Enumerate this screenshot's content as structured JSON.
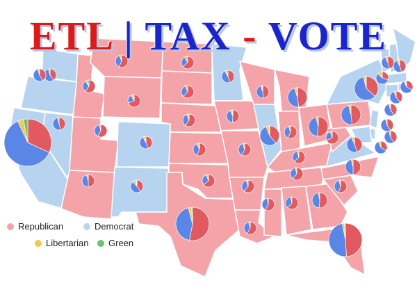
{
  "title": {
    "part1": "ETL",
    "separator": " | ",
    "part2": "TAX",
    "dash": " - ",
    "part3": "VOTE"
  },
  "colors": {
    "republican": "#f4a3a8",
    "democrat": "#b6d3ef",
    "republican_pie": "#e05a60",
    "democrat_pie": "#5b86e6",
    "libertarian_pie": "#f2c94c",
    "green_pie": "#6cc26c",
    "border": "#ffffff"
  },
  "legend": [
    {
      "label": "Republican",
      "color": "#f2a3a8"
    },
    {
      "label": "Democrat",
      "color": "#b9d5f0"
    },
    {
      "label": "Libertarian",
      "color": "#f2c94c"
    },
    {
      "label": "Green",
      "color": "#6cc26c"
    }
  ],
  "states": [
    {
      "name": "WA",
      "party": "Democrat"
    },
    {
      "name": "OR",
      "party": "Democrat"
    },
    {
      "name": "CA",
      "party": "Democrat"
    },
    {
      "name": "NV",
      "party": "Democrat"
    },
    {
      "name": "ID",
      "party": "Republican"
    },
    {
      "name": "MT",
      "party": "Republican"
    },
    {
      "name": "WY",
      "party": "Republican"
    },
    {
      "name": "UT",
      "party": "Republican"
    },
    {
      "name": "AZ",
      "party": "Republican"
    },
    {
      "name": "CO",
      "party": "Democrat"
    },
    {
      "name": "NM",
      "party": "Democrat"
    },
    {
      "name": "ND",
      "party": "Republican"
    },
    {
      "name": "SD",
      "party": "Republican"
    },
    {
      "name": "NE",
      "party": "Republican"
    },
    {
      "name": "KS",
      "party": "Republican"
    },
    {
      "name": "OK",
      "party": "Republican"
    },
    {
      "name": "TX",
      "party": "Republican"
    },
    {
      "name": "MN",
      "party": "Democrat"
    },
    {
      "name": "IA",
      "party": "Republican"
    },
    {
      "name": "MO",
      "party": "Republican"
    },
    {
      "name": "AR",
      "party": "Republican"
    },
    {
      "name": "LA",
      "party": "Republican"
    },
    {
      "name": "WI",
      "party": "Republican"
    },
    {
      "name": "IL",
      "party": "Democrat"
    },
    {
      "name": "MI",
      "party": "Republican"
    },
    {
      "name": "IN",
      "party": "Republican"
    },
    {
      "name": "OH",
      "party": "Republican"
    },
    {
      "name": "KY",
      "party": "Republican"
    },
    {
      "name": "TN",
      "party": "Republican"
    },
    {
      "name": "MS",
      "party": "Republican"
    },
    {
      "name": "AL",
      "party": "Republican"
    },
    {
      "name": "GA",
      "party": "Republican"
    },
    {
      "name": "FL",
      "party": "Republican"
    },
    {
      "name": "SC",
      "party": "Republican"
    },
    {
      "name": "NC",
      "party": "Republican"
    },
    {
      "name": "VA",
      "party": "Democrat"
    },
    {
      "name": "WV",
      "party": "Republican"
    },
    {
      "name": "PA",
      "party": "Republican"
    },
    {
      "name": "NY",
      "party": "Democrat"
    },
    {
      "name": "VT",
      "party": "Democrat"
    },
    {
      "name": "NH",
      "party": "Democrat"
    },
    {
      "name": "ME",
      "party": "Democrat"
    },
    {
      "name": "MA",
      "party": "Democrat"
    },
    {
      "name": "RI",
      "party": "Democrat"
    },
    {
      "name": "CT",
      "party": "Democrat"
    },
    {
      "name": "NJ",
      "party": "Democrat"
    },
    {
      "name": "DE",
      "party": "Democrat"
    },
    {
      "name": "MD",
      "party": "Democrat"
    }
  ],
  "pies": [
    {
      "state": "WA",
      "shares": [
        0.4,
        0.56,
        0.04,
        0.0
      ]
    },
    {
      "state": "OR",
      "shares": [
        0.42,
        0.53,
        0.05,
        0.0
      ]
    },
    {
      "state": "CA",
      "shares": [
        0.32,
        0.61,
        0.04,
        0.03
      ]
    },
    {
      "state": "NV",
      "shares": [
        0.46,
        0.5,
        0.04,
        0.0
      ]
    },
    {
      "state": "ID",
      "shares": [
        0.6,
        0.3,
        0.05,
        0.05
      ]
    },
    {
      "state": "MT",
      "shares": [
        0.57,
        0.37,
        0.06,
        0.0
      ]
    },
    {
      "state": "WY",
      "shares": [
        0.7,
        0.22,
        0.05,
        0.03
      ]
    },
    {
      "state": "UT",
      "shares": [
        0.58,
        0.38,
        0.04,
        0.0
      ]
    },
    {
      "state": "AZ",
      "shares": [
        0.5,
        0.45,
        0.05,
        0.0
      ]
    },
    {
      "state": "CO",
      "shares": [
        0.44,
        0.48,
        0.05,
        0.03
      ]
    },
    {
      "state": "NM",
      "shares": [
        0.4,
        0.48,
        0.1,
        0.02
      ]
    },
    {
      "state": "ND",
      "shares": [
        0.64,
        0.28,
        0.08,
        0.0
      ]
    },
    {
      "state": "SD",
      "shares": [
        0.62,
        0.32,
        0.06,
        0.0
      ]
    },
    {
      "state": "NE",
      "shares": [
        0.6,
        0.34,
        0.06,
        0.0
      ]
    },
    {
      "state": "KS",
      "shares": [
        0.57,
        0.36,
        0.05,
        0.02
      ]
    },
    {
      "state": "OK",
      "shares": [
        0.65,
        0.29,
        0.06,
        0.0
      ]
    },
    {
      "state": "TX",
      "shares": [
        0.53,
        0.43,
        0.03,
        0.01
      ]
    },
    {
      "state": "MN",
      "shares": [
        0.45,
        0.47,
        0.04,
        0.04
      ]
    },
    {
      "state": "IA",
      "shares": [
        0.51,
        0.42,
        0.05,
        0.02
      ]
    },
    {
      "state": "MO",
      "shares": [
        0.57,
        0.38,
        0.05,
        0.0
      ]
    },
    {
      "state": "AR",
      "shares": [
        0.61,
        0.34,
        0.05,
        0.0
      ]
    },
    {
      "state": "LA",
      "shares": [
        0.58,
        0.38,
        0.04,
        0.0
      ]
    },
    {
      "state": "WI",
      "shares": [
        0.48,
        0.47,
        0.04,
        0.01
      ]
    },
    {
      "state": "IL",
      "shares": [
        0.39,
        0.55,
        0.05,
        0.01
      ]
    },
    {
      "state": "MI",
      "shares": [
        0.48,
        0.47,
        0.04,
        0.01
      ]
    },
    {
      "state": "IN",
      "shares": [
        0.57,
        0.38,
        0.05,
        0.0
      ]
    },
    {
      "state": "OH",
      "shares": [
        0.52,
        0.44,
        0.04,
        0.0
      ]
    },
    {
      "state": "KY",
      "shares": [
        0.63,
        0.33,
        0.04,
        0.0
      ]
    },
    {
      "state": "TN",
      "shares": [
        0.61,
        0.35,
        0.04,
        0.0
      ]
    },
    {
      "state": "MS",
      "shares": [
        0.58,
        0.4,
        0.02,
        0.0
      ]
    },
    {
      "state": "AL",
      "shares": [
        0.62,
        0.35,
        0.03,
        0.0
      ]
    },
    {
      "state": "GA",
      "shares": [
        0.51,
        0.46,
        0.03,
        0.0
      ]
    },
    {
      "state": "FL",
      "shares": [
        0.49,
        0.48,
        0.02,
        0.01
      ]
    },
    {
      "state": "SC",
      "shares": [
        0.55,
        0.41,
        0.04,
        0.0
      ]
    },
    {
      "state": "NC",
      "shares": [
        0.5,
        0.46,
        0.04,
        0.0
      ]
    },
    {
      "state": "VA",
      "shares": [
        0.44,
        0.5,
        0.06,
        0.0
      ]
    },
    {
      "state": "WV",
      "shares": [
        0.68,
        0.27,
        0.05,
        0.0
      ]
    },
    {
      "state": "PA",
      "shares": [
        0.48,
        0.48,
        0.04,
        0.0
      ]
    },
    {
      "state": "NY",
      "shares": [
        0.37,
        0.59,
        0.03,
        0.01
      ]
    },
    {
      "state": "VT",
      "shares": [
        0.3,
        0.57,
        0.1,
        0.03
      ]
    },
    {
      "state": "NH",
      "shares": [
        0.46,
        0.47,
        0.07,
        0.0
      ]
    },
    {
      "state": "ME",
      "shares": [
        0.45,
        0.48,
        0.05,
        0.02
      ]
    },
    {
      "state": "MA",
      "shares": [
        0.33,
        0.6,
        0.04,
        0.03
      ]
    },
    {
      "state": "RI",
      "shares": [
        0.39,
        0.55,
        0.06,
        0.0
      ]
    },
    {
      "state": "CT",
      "shares": [
        0.41,
        0.54,
        0.04,
        0.01
      ]
    },
    {
      "state": "NJ",
      "shares": [
        0.41,
        0.55,
        0.04,
        0.0
      ]
    },
    {
      "state": "DE",
      "shares": [
        0.42,
        0.53,
        0.05,
        0.0
      ]
    },
    {
      "state": "MD",
      "shares": [
        0.34,
        0.6,
        0.06,
        0.0
      ]
    }
  ]
}
